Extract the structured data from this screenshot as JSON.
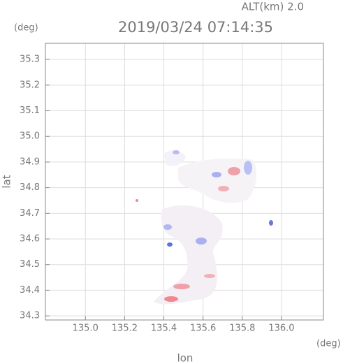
{
  "chart_data": {
    "type": "map",
    "title": "2019/03/24 07:14:35",
    "subtitle": "ALT(km) 2.0",
    "xlabel": "lon",
    "ylabel": "lat",
    "x_unit": "(deg)",
    "y_unit": "(deg)",
    "xlim": [
      134.796,
      136.214
    ],
    "ylim": [
      34.284,
      35.363
    ],
    "xticks": [
      {
        "value": 135,
        "label": "135.0"
      },
      135.2,
      135.4,
      135.6,
      135.8,
      {
        "value": 136,
        "label": "136.0"
      }
    ],
    "yticks": [
      34.3,
      34.4,
      34.5,
      34.6,
      34.7,
      34.8,
      34.9,
      {
        "value": 35,
        "label": "35.0"
      },
      35.1,
      35.2,
      35.3
    ],
    "grid": true
  }
}
